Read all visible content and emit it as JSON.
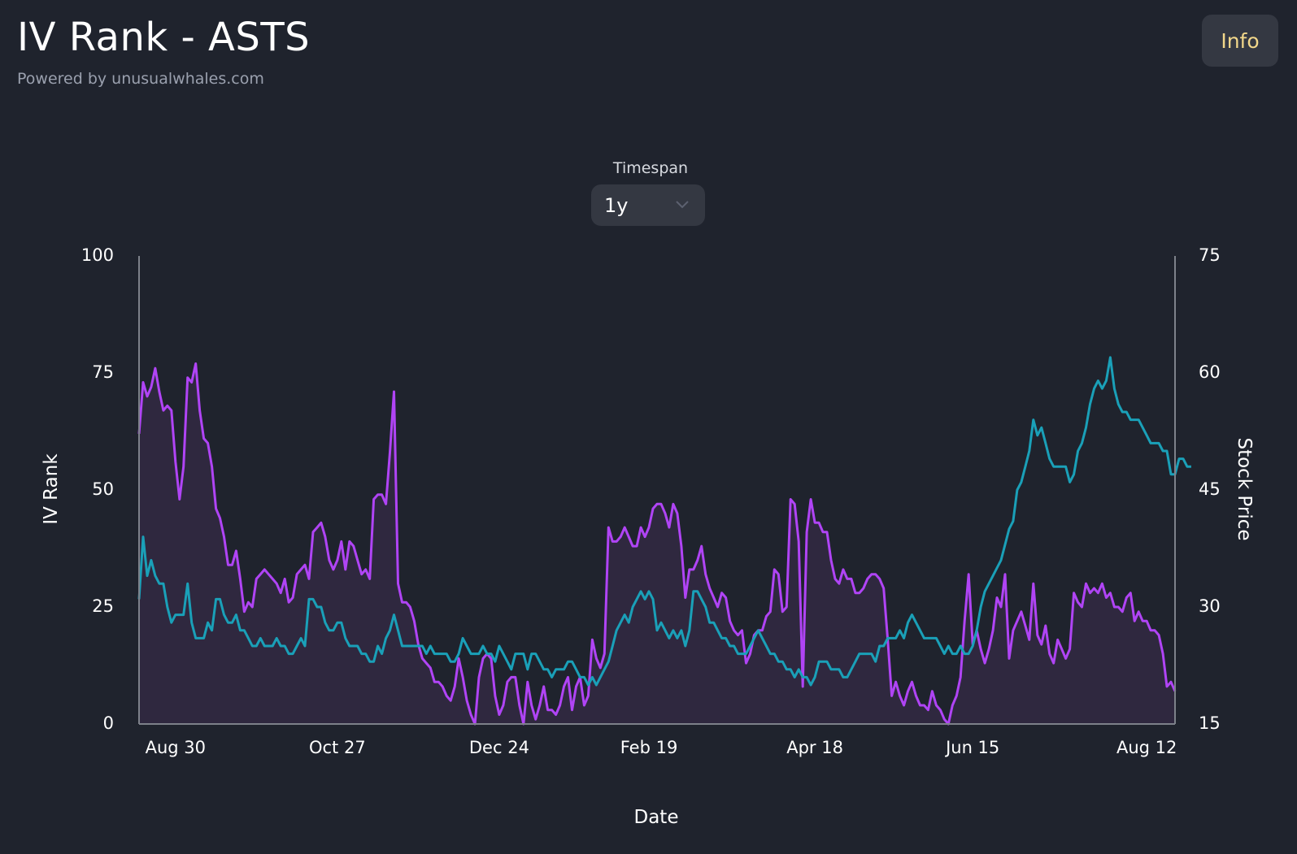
{
  "header": {
    "title": "IV Rank - ASTS",
    "subtitle": "Powered by unusualwhales.com",
    "info_label": "Info"
  },
  "controls": {
    "timespan_label": "Timespan",
    "timespan_value": "1y"
  },
  "colors": {
    "background": "#1f232d",
    "iv_rank": "#b044f5",
    "iv_rank_fill": "#2f283f",
    "stock_price": "#1aa0b8",
    "axis": "#7d818a",
    "info_text": "#f2d78a"
  },
  "chart_data": {
    "type": "line",
    "title": "",
    "xlabel": "Date",
    "ylabel": "IV Rank",
    "y2label": "Stock Price",
    "ylim": [
      0,
      100
    ],
    "y2lim": [
      15,
      75
    ],
    "yticks": [
      0,
      25,
      50,
      75,
      100
    ],
    "y2ticks": [
      15,
      30,
      45,
      60,
      75
    ],
    "xticks": [
      {
        "label": "Aug 30",
        "index": 9
      },
      {
        "label": "Oct 27",
        "index": 49
      },
      {
        "label": "Dec 24",
        "index": 89
      },
      {
        "label": "Feb 19",
        "index": 126
      },
      {
        "label": "Apr 18",
        "index": 167
      },
      {
        "label": "Jun 15",
        "index": 206
      },
      {
        "label": "Aug 12",
        "index": 249
      }
    ],
    "grid": false,
    "legend": "none",
    "series": [
      {
        "axis": "left",
        "filled": true,
        "values": [
          62,
          73,
          70,
          72,
          76,
          71,
          67,
          68,
          67,
          56,
          48,
          55,
          74,
          73,
          77,
          67,
          61,
          60,
          55,
          46,
          44,
          40,
          34,
          34,
          37,
          31,
          24,
          26,
          25,
          31,
          32,
          33,
          32,
          31,
          30,
          28,
          31,
          26,
          27,
          32,
          33,
          34,
          31,
          41,
          42,
          43,
          40,
          35,
          33,
          35,
          39,
          33,
          39,
          38,
          35,
          32,
          33,
          31,
          48,
          49,
          49,
          47,
          58,
          71,
          30,
          26,
          26,
          25,
          22,
          17,
          14,
          13,
          12,
          9,
          9,
          8,
          6,
          5,
          8,
          14,
          10,
          5,
          2,
          0,
          10,
          14,
          15,
          14,
          6,
          2,
          4,
          9,
          10,
          10,
          4,
          0,
          9,
          4,
          1,
          4,
          8,
          3,
          3,
          2,
          4,
          8,
          10,
          3,
          8,
          10,
          4,
          6,
          18,
          14,
          12,
          15,
          42,
          39,
          39,
          40,
          42,
          40,
          38,
          38,
          42,
          40,
          42,
          46,
          47,
          47,
          45,
          42,
          47,
          45,
          38,
          27,
          33,
          33,
          35,
          38,
          32,
          29,
          27,
          25,
          28,
          27,
          22,
          20,
          19,
          20,
          13,
          15,
          19,
          20,
          20,
          23,
          24,
          33,
          32,
          24,
          25,
          48,
          47,
          39,
          8,
          41,
          48,
          43,
          43,
          41,
          41,
          35,
          31,
          30,
          33,
          31,
          31,
          28,
          28,
          29,
          31,
          32,
          32,
          31,
          29,
          18,
          6,
          9,
          6,
          4,
          7,
          9,
          6,
          4,
          4,
          3,
          7,
          4,
          3,
          1,
          0,
          4,
          6,
          10,
          22,
          32,
          17,
          20,
          16,
          13,
          16,
          20,
          27,
          25,
          32,
          14,
          20,
          22,
          24,
          21,
          18,
          30,
          19,
          17,
          21,
          15,
          13,
          18,
          16,
          14,
          16,
          28,
          26,
          25,
          30,
          28,
          29,
          28,
          30,
          27,
          28,
          25,
          25,
          24,
          27,
          28,
          22,
          24,
          22,
          22,
          20,
          20,
          19,
          15,
          8,
          9,
          7
        ]
      },
      {
        "axis": "right",
        "filled": false,
        "values": [
          31,
          39,
          34,
          36,
          34,
          33,
          33,
          30,
          28,
          29,
          29,
          29,
          33,
          28,
          26,
          26,
          26,
          28,
          27,
          31,
          31,
          29,
          28,
          28,
          29,
          27,
          27,
          26,
          25,
          25,
          26,
          25,
          25,
          25,
          26,
          25,
          25,
          24,
          24,
          25,
          26,
          25,
          31,
          31,
          30,
          30,
          28,
          27,
          27,
          28,
          28,
          26,
          25,
          25,
          25,
          24,
          24,
          23,
          23,
          25,
          24,
          26,
          27,
          29,
          27,
          25,
          25,
          25,
          25,
          25,
          25,
          24,
          25,
          24,
          24,
          24,
          24,
          23,
          23,
          24,
          26,
          25,
          24,
          24,
          24,
          25,
          24,
          24,
          23,
          25,
          24,
          23,
          22,
          24,
          24,
          24,
          22,
          24,
          24,
          23,
          22,
          22,
          21,
          22,
          22,
          22,
          23,
          23,
          22,
          21,
          21,
          20,
          21,
          20,
          21,
          22,
          23,
          25,
          27,
          28,
          29,
          28,
          30,
          31,
          32,
          31,
          32,
          31,
          27,
          28,
          27,
          26,
          27,
          26,
          27,
          25,
          27,
          32,
          32,
          31,
          30,
          28,
          28,
          27,
          26,
          26,
          25,
          25,
          24,
          24,
          24,
          25,
          26,
          27,
          26,
          25,
          24,
          24,
          23,
          23,
          22,
          22,
          21,
          22,
          21,
          21,
          20,
          21,
          23,
          23,
          23,
          22,
          22,
          22,
          21,
          21,
          22,
          23,
          24,
          24,
          24,
          24,
          23,
          25,
          25,
          26,
          26,
          26,
          27,
          26,
          28,
          29,
          28,
          27,
          26,
          26,
          26,
          26,
          25,
          24,
          25,
          24,
          24,
          25,
          24,
          24,
          25,
          27,
          30,
          32,
          33,
          34,
          35,
          36,
          38,
          40,
          41,
          45,
          46,
          48,
          50,
          54,
          52,
          53,
          51,
          49,
          48,
          48,
          48,
          48,
          46,
          47,
          50,
          51,
          53,
          56,
          58,
          59,
          58,
          59,
          62,
          58,
          56,
          55,
          55,
          54,
          54,
          54,
          53,
          52,
          51,
          51,
          51,
          50,
          50,
          47,
          47,
          49,
          49,
          48,
          48
        ]
      }
    ]
  }
}
